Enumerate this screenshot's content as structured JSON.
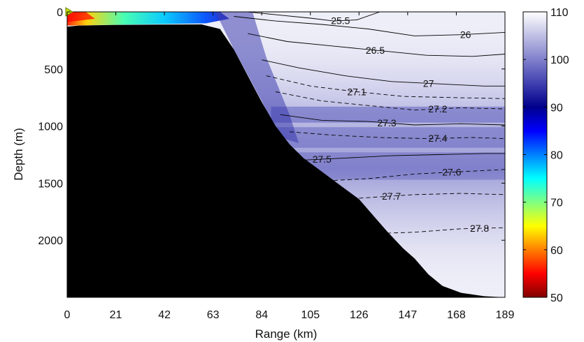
{
  "chart_data": {
    "type": "heatmap",
    "title": "",
    "xlabel": "Range (km)",
    "ylabel": "Depth (m)",
    "xlim": [
      0,
      189
    ],
    "ylim": [
      2500,
      0
    ],
    "xticks": [
      "0",
      "21",
      "42",
      "63",
      "84",
      "105",
      "126",
      "147",
      "168",
      "189"
    ],
    "yticks": [
      {
        "value": 0,
        "label": "0"
      },
      {
        "value": 500,
        "label": "500"
      },
      {
        "value": 1000,
        "label": "1000"
      },
      {
        "value": 1500,
        "label": "1500"
      },
      {
        "value": 2000,
        "label": "2000"
      }
    ],
    "colorbar": {
      "range": [
        50,
        110
      ],
      "ticks": [
        "50",
        "60",
        "70",
        "80",
        "90",
        "100",
        "110"
      ],
      "colors": [
        "#800000",
        "#ff0000",
        "#ff8000",
        "#ffff00",
        "#80ff80",
        "#00ffff",
        "#0080ff",
        "#0000ff",
        "#00008c",
        "#4040b0",
        "#8080cc",
        "#c0c0e4",
        "#ffffff"
      ]
    },
    "seafloor": {
      "color": "#000000",
      "x": [
        0,
        5,
        20,
        40,
        58,
        66,
        72,
        78,
        84,
        90,
        96,
        102,
        110,
        118,
        126,
        132,
        138,
        145,
        150,
        156,
        162,
        170,
        180,
        189
      ],
      "depth": [
        130,
        120,
        115,
        112,
        110,
        150,
        330,
        560,
        790,
        1000,
        1160,
        1280,
        1400,
        1520,
        1640,
        1780,
        1920,
        2070,
        2160,
        2300,
        2400,
        2460,
        2490,
        2500
      ]
    },
    "field_regions": [
      {
        "name": "transmission-loss-low",
        "value": 55,
        "x": [
          0,
          8
        ],
        "depth": [
          0,
          80
        ]
      },
      {
        "name": "transmission-loss-mid",
        "value": 80,
        "x": [
          4,
          55
        ],
        "depth": [
          0,
          90
        ]
      },
      {
        "name": "transmission-loss-high",
        "value": 95,
        "x": [
          60,
          100
        ],
        "depth": [
          0,
          1000
        ]
      }
    ],
    "source_marker": {
      "x": 0,
      "depth": 0,
      "color": "#c8e000"
    },
    "contours": [
      {
        "label": "25.5",
        "style": "solid",
        "label_x": 118,
        "x": [
          78,
          90,
          105,
          115,
          125,
          135
        ],
        "depth": [
          0,
          25,
          55,
          80,
          70,
          0
        ]
      },
      {
        "label": "26",
        "style": "solid",
        "label_x": 172,
        "x": [
          72,
          90,
          110,
          130,
          150,
          170,
          189
        ],
        "depth": [
          40,
          80,
          110,
          150,
          210,
          200,
          180
        ]
      },
      {
        "label": "26.5",
        "style": "solid",
        "label_x": 133,
        "x": [
          78,
          95,
          115,
          135,
          155,
          175,
          189
        ],
        "depth": [
          190,
          260,
          300,
          340,
          380,
          390,
          370
        ]
      },
      {
        "label": "27",
        "style": "solid",
        "label_x": 156,
        "x": [
          84,
          100,
          120,
          140,
          160,
          180,
          189
        ],
        "depth": [
          420,
          490,
          560,
          610,
          630,
          650,
          650
        ]
      },
      {
        "label": "27.1",
        "style": "dashed",
        "label_x": 125,
        "x": [
          86,
          105,
          125,
          145,
          165,
          189
        ],
        "depth": [
          560,
          650,
          700,
          740,
          750,
          760
        ]
      },
      {
        "label": "27.2",
        "style": "dashed",
        "label_x": 160,
        "x": [
          90,
          110,
          130,
          150,
          170,
          189
        ],
        "depth": [
          700,
          780,
          820,
          860,
          840,
          850
        ]
      },
      {
        "label": "27.3",
        "style": "solid",
        "label_x": 138,
        "x": [
          92,
          110,
          130,
          150,
          170,
          189
        ],
        "depth": [
          900,
          950,
          960,
          990,
          980,
          990
        ]
      },
      {
        "label": "27.4",
        "style": "dashed",
        "label_x": 160,
        "x": [
          96,
          115,
          135,
          155,
          175,
          189
        ],
        "depth": [
          1050,
          1080,
          1100,
          1110,
          1100,
          1110
        ]
      },
      {
        "label": "27.5",
        "style": "solid",
        "label_x": 110,
        "x": [
          100,
          120,
          140,
          160,
          180,
          189
        ],
        "depth": [
          1300,
          1280,
          1260,
          1250,
          1240,
          1240
        ]
      },
      {
        "label": "27.6",
        "style": "dashed",
        "label_x": 166,
        "x": [
          112,
          130,
          150,
          170,
          189
        ],
        "depth": [
          1480,
          1460,
          1420,
          1400,
          1380
        ]
      },
      {
        "label": "27.7",
        "style": "dashed",
        "label_x": 140,
        "x": [
          120,
          135,
          150,
          170,
          189
        ],
        "depth": [
          1640,
          1620,
          1600,
          1590,
          1600
        ]
      },
      {
        "label": "27.8",
        "style": "dashed",
        "label_x": 178,
        "x": [
          135,
          150,
          170,
          189
        ],
        "depth": [
          1940,
          1930,
          1900,
          1890
        ]
      }
    ]
  }
}
